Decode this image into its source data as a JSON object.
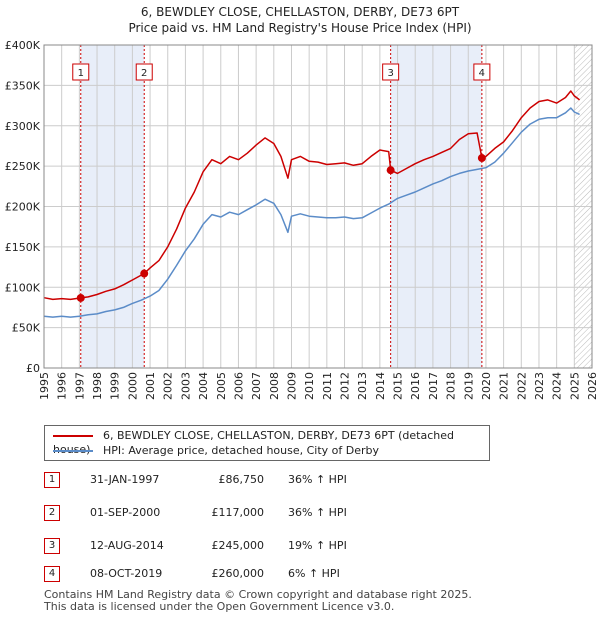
{
  "title_line1": "6, BEWDLEY CLOSE, CHELLASTON, DERBY, DE73 6PT",
  "title_line2": "Price paid vs. HM Land Registry's House Price Index (HPI)",
  "colors": {
    "property": "#cc0000",
    "hpi": "#5b8cc8",
    "shade": "#e8eef9",
    "marker": "#cc0000",
    "grid": "#cccccc"
  },
  "chart_data": {
    "type": "line",
    "title": "Price paid vs. HM Land Registry's House Price Index (HPI)",
    "xlim": [
      1995,
      2026
    ],
    "ylim": [
      0,
      400000
    ],
    "xticks": [
      "1995",
      "1996",
      "1997",
      "1998",
      "1999",
      "2000",
      "2001",
      "2002",
      "2003",
      "2004",
      "2005",
      "2006",
      "2007",
      "2008",
      "2009",
      "2010",
      "2011",
      "2012",
      "2013",
      "2014",
      "2015",
      "2016",
      "2017",
      "2018",
      "2019",
      "2020",
      "2021",
      "2022",
      "2023",
      "2024",
      "2025",
      "2026"
    ],
    "yticks": [
      {
        "value": 0,
        "label": "£0"
      },
      {
        "value": 50000,
        "label": "£50K"
      },
      {
        "value": 100000,
        "label": "£100K"
      },
      {
        "value": 150000,
        "label": "£150K"
      },
      {
        "value": 200000,
        "label": "£200K"
      },
      {
        "value": 250000,
        "label": "£250K"
      },
      {
        "value": 300000,
        "label": "£300K"
      },
      {
        "value": 350000,
        "label": "£350K"
      },
      {
        "value": 400000,
        "label": "£400K"
      }
    ],
    "grid": true,
    "shaded_ranges": [
      [
        1997.08,
        2000.67
      ],
      [
        2014.61,
        2019.77
      ]
    ],
    "future_hatch_from": 2025.0,
    "series": [
      {
        "name": "6, BEWDLEY CLOSE, CHELLASTON, DERBY, DE73 6PT (detached house)",
        "color": "#cc0000",
        "x": [
          1995.0,
          1995.5,
          1996.0,
          1996.5,
          1997.08,
          1997.5,
          1998.0,
          1998.5,
          1999.0,
          1999.5,
          2000.0,
          2000.67,
          2001.0,
          2001.5,
          2002.0,
          2002.5,
          2003.0,
          2003.5,
          2004.0,
          2004.5,
          2005.0,
          2005.5,
          2006.0,
          2006.5,
          2007.0,
          2007.5,
          2008.0,
          2008.4,
          2008.8,
          2009.0,
          2009.5,
          2010.0,
          2010.5,
          2011.0,
          2011.5,
          2012.0,
          2012.5,
          2013.0,
          2013.5,
          2014.0,
          2014.5,
          2014.61,
          2015.0,
          2015.5,
          2016.0,
          2016.5,
          2017.0,
          2017.5,
          2018.0,
          2018.5,
          2019.0,
          2019.5,
          2019.77,
          2020.0,
          2020.5,
          2021.0,
          2021.5,
          2022.0,
          2022.5,
          2023.0,
          2023.5,
          2024.0,
          2024.5,
          2024.8,
          2025.0,
          2025.3
        ],
        "values": [
          87000,
          85000,
          86000,
          85000,
          86750,
          88000,
          91000,
          95000,
          98000,
          103000,
          109000,
          117000,
          124000,
          133000,
          150000,
          172000,
          198000,
          218000,
          243000,
          258000,
          253000,
          262000,
          258000,
          266000,
          276000,
          285000,
          278000,
          262000,
          235000,
          258000,
          262000,
          256000,
          255000,
          252000,
          253000,
          254000,
          251000,
          253000,
          262000,
          270000,
          268000,
          245000,
          241000,
          247000,
          253000,
          258000,
          262000,
          267000,
          272000,
          283000,
          290000,
          291000,
          260000,
          262000,
          272000,
          280000,
          294000,
          310000,
          322000,
          330000,
          332000,
          328000,
          335000,
          343000,
          337000,
          332000
        ]
      },
      {
        "name": "HPI: Average price, detached house, City of Derby",
        "color": "#5b8cc8",
        "x": [
          1995.0,
          1995.5,
          1996.0,
          1996.5,
          1997.0,
          1997.5,
          1998.0,
          1998.5,
          1999.0,
          1999.5,
          2000.0,
          2000.5,
          2001.0,
          2001.5,
          2002.0,
          2002.5,
          2003.0,
          2003.5,
          2004.0,
          2004.5,
          2005.0,
          2005.5,
          2006.0,
          2006.5,
          2007.0,
          2007.5,
          2008.0,
          2008.4,
          2008.8,
          2009.0,
          2009.5,
          2010.0,
          2010.5,
          2011.0,
          2011.5,
          2012.0,
          2012.5,
          2013.0,
          2013.5,
          2014.0,
          2014.5,
          2015.0,
          2015.5,
          2016.0,
          2016.5,
          2017.0,
          2017.5,
          2018.0,
          2018.5,
          2019.0,
          2019.5,
          2020.0,
          2020.5,
          2021.0,
          2021.5,
          2022.0,
          2022.5,
          2023.0,
          2023.5,
          2024.0,
          2024.5,
          2024.8,
          2025.0,
          2025.3
        ],
        "values": [
          64000,
          63000,
          64000,
          63000,
          64000,
          66000,
          67000,
          70000,
          72000,
          75000,
          80000,
          84000,
          89000,
          96000,
          110000,
          127000,
          145000,
          160000,
          178000,
          190000,
          187000,
          193000,
          190000,
          196000,
          202000,
          209000,
          204000,
          190000,
          168000,
          188000,
          191000,
          188000,
          187000,
          186000,
          186000,
          187000,
          185000,
          186000,
          192000,
          198000,
          203000,
          210000,
          214000,
          218000,
          223000,
          228000,
          232000,
          237000,
          241000,
          244000,
          246000,
          248000,
          255000,
          266000,
          279000,
          292000,
          302000,
          308000,
          310000,
          310000,
          316000,
          322000,
          317000,
          314000
        ]
      }
    ],
    "markers": [
      {
        "label": "1",
        "x": 1997.08,
        "y": 86750
      },
      {
        "label": "2",
        "x": 2000.67,
        "y": 117000
      },
      {
        "label": "3",
        "x": 2014.61,
        "y": 245000
      },
      {
        "label": "4",
        "x": 2019.77,
        "y": 260000
      }
    ]
  },
  "legend": {
    "property_label": "6, BEWDLEY CLOSE, CHELLASTON, DERBY, DE73 6PT (detached house)",
    "hpi_label": "HPI: Average price, detached house, City of Derby"
  },
  "transactions": [
    {
      "num": "1",
      "date": "31-JAN-1997",
      "price": "£86,750",
      "hpi": "36% ↑ HPI"
    },
    {
      "num": "2",
      "date": "01-SEP-2000",
      "price": "£117,000",
      "hpi": "36% ↑ HPI"
    },
    {
      "num": "3",
      "date": "12-AUG-2014",
      "price": "£245,000",
      "hpi": "19% ↑ HPI"
    },
    {
      "num": "4",
      "date": "08-OCT-2019",
      "price": "£260,000",
      "hpi": "6% ↑ HPI"
    }
  ],
  "footer": {
    "line1": "Contains HM Land Registry data © Crown copyright and database right 2025.",
    "line2": "This data is licensed under the Open Government Licence v3.0."
  }
}
